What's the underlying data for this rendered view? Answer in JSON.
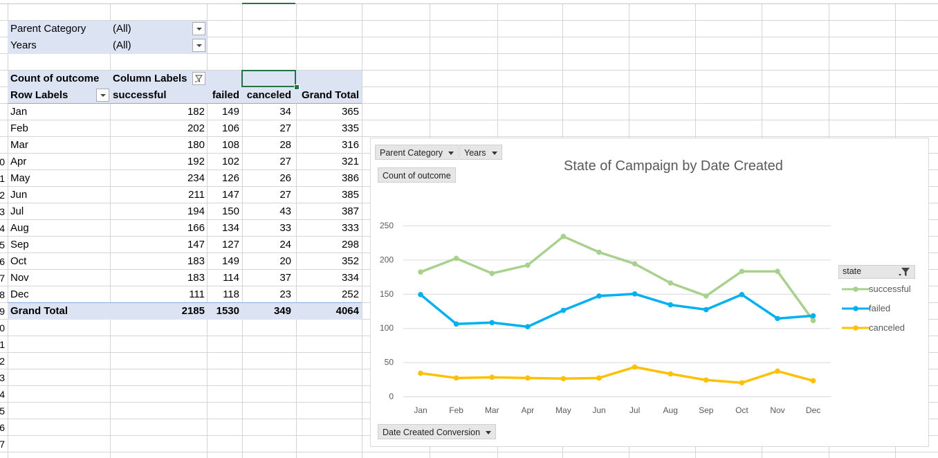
{
  "report_filters": [
    {
      "label": "Parent Category",
      "value": "(All)"
    },
    {
      "label": "Years",
      "value": "(All)"
    }
  ],
  "pivot": {
    "value_label": "Count of outcome",
    "column_labels": "Column Labels",
    "row_labels": "Row Labels",
    "headers": [
      "successful",
      "failed",
      "canceled",
      "Grand Total"
    ],
    "rows": [
      {
        "month": "Jan",
        "values": [
          "182",
          "149",
          "34",
          "365"
        ]
      },
      {
        "month": "Feb",
        "values": [
          "202",
          "106",
          "27",
          "335"
        ]
      },
      {
        "month": "Mar",
        "values": [
          "180",
          "108",
          "28",
          "316"
        ]
      },
      {
        "month": "Apr",
        "values": [
          "192",
          "102",
          "27",
          "321"
        ]
      },
      {
        "month": "May",
        "values": [
          "234",
          "126",
          "26",
          "386"
        ]
      },
      {
        "month": "Jun",
        "values": [
          "211",
          "147",
          "27",
          "385"
        ]
      },
      {
        "month": "Jul",
        "values": [
          "194",
          "150",
          "43",
          "387"
        ]
      },
      {
        "month": "Aug",
        "values": [
          "166",
          "134",
          "33",
          "333"
        ]
      },
      {
        "month": "Sep",
        "values": [
          "147",
          "127",
          "24",
          "298"
        ]
      },
      {
        "month": "Oct",
        "values": [
          "183",
          "149",
          "20",
          "352"
        ]
      },
      {
        "month": "Nov",
        "values": [
          "183",
          "114",
          "37",
          "334"
        ]
      },
      {
        "month": "Dec",
        "values": [
          "111",
          "118",
          "23",
          "252"
        ]
      }
    ],
    "grand_total": {
      "label": "Grand Total",
      "values": [
        "2185",
        "1530",
        "349",
        "4064"
      ]
    }
  },
  "row_numbers": [
    "0",
    "1",
    "2",
    "3",
    "4",
    "5",
    "6",
    "7",
    "8",
    "9",
    "0",
    "1",
    "2",
    "3",
    "4",
    "5",
    "6",
    "7"
  ],
  "chart": {
    "field_buttons": {
      "parent_category": "Parent Category",
      "years": "Years",
      "values": "Count of outcome",
      "axis": "Date Created Conversion"
    },
    "legend_title": "state"
  },
  "colors": {
    "successful": "#a9d18e",
    "failed": "#00b0f0",
    "canceled": "#ffc000",
    "pivot_band": "#dce3f2",
    "selection": "#217346"
  },
  "chart_data": {
    "type": "line",
    "title": "State of Campaign by Date Created",
    "categories": [
      "Jan",
      "Feb",
      "Mar",
      "Apr",
      "May",
      "Jun",
      "Jul",
      "Aug",
      "Sep",
      "Oct",
      "Nov",
      "Dec"
    ],
    "series": [
      {
        "name": "successful",
        "values": [
          182,
          202,
          180,
          192,
          234,
          211,
          194,
          166,
          147,
          183,
          183,
          111
        ]
      },
      {
        "name": "failed",
        "values": [
          149,
          106,
          108,
          102,
          126,
          147,
          150,
          134,
          127,
          149,
          114,
          118
        ]
      },
      {
        "name": "canceled",
        "values": [
          34,
          27,
          28,
          27,
          26,
          27,
          43,
          33,
          24,
          20,
          37,
          23
        ]
      }
    ],
    "ylim": [
      0,
      250
    ],
    "yticks": [
      0,
      50,
      100,
      150,
      200,
      250
    ],
    "grid": true,
    "legend": "right"
  }
}
